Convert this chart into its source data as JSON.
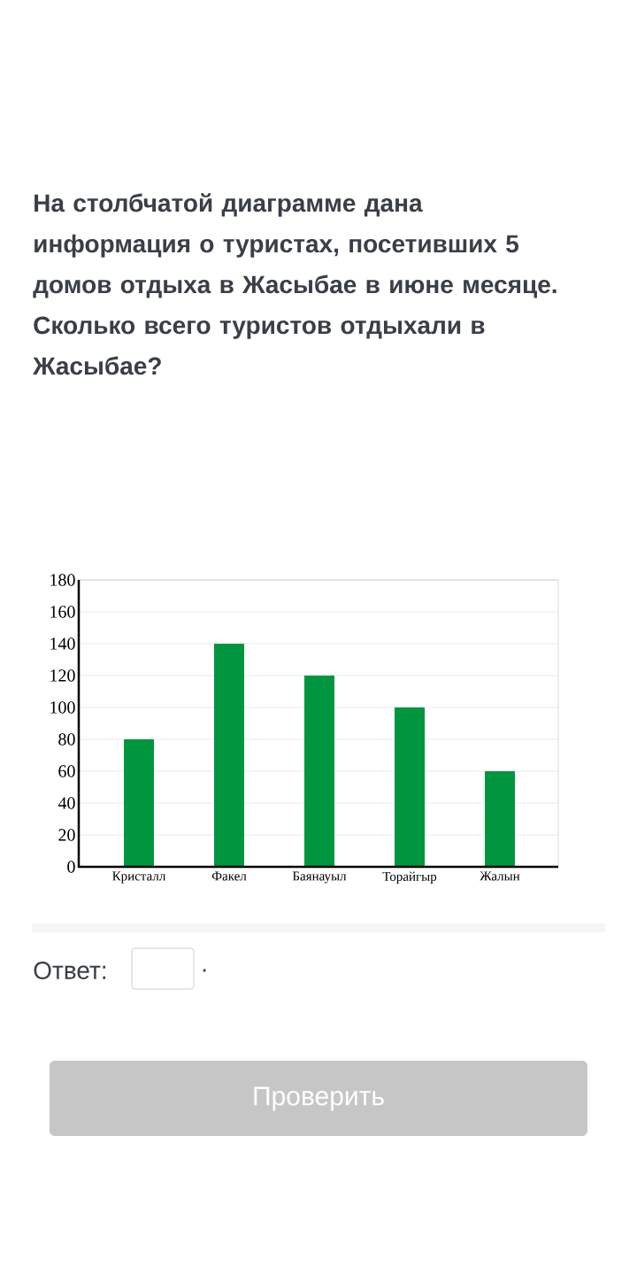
{
  "chart_data": {
    "type": "bar",
    "title": "На столбчатой диаграмме дана информация о туристах, посетивших 5 домов отдыха в Жасыбае в июне месяце. Сколько всего туристов отдыхали в Жасыбае?",
    "categories": [
      "Кристалл",
      "Факел",
      "Баянауыл",
      "Торайгыр",
      "Жалын"
    ],
    "values": [
      80,
      140,
      120,
      100,
      60
    ],
    "color": "#009640",
    "ylim": [
      0,
      180
    ],
    "yticks": [
      0,
      20,
      40,
      60,
      80,
      100,
      120,
      140,
      160,
      180
    ],
    "grid": "y",
    "annotations": [
      "Ответ:",
      ".",
      "Проверить"
    ]
  }
}
